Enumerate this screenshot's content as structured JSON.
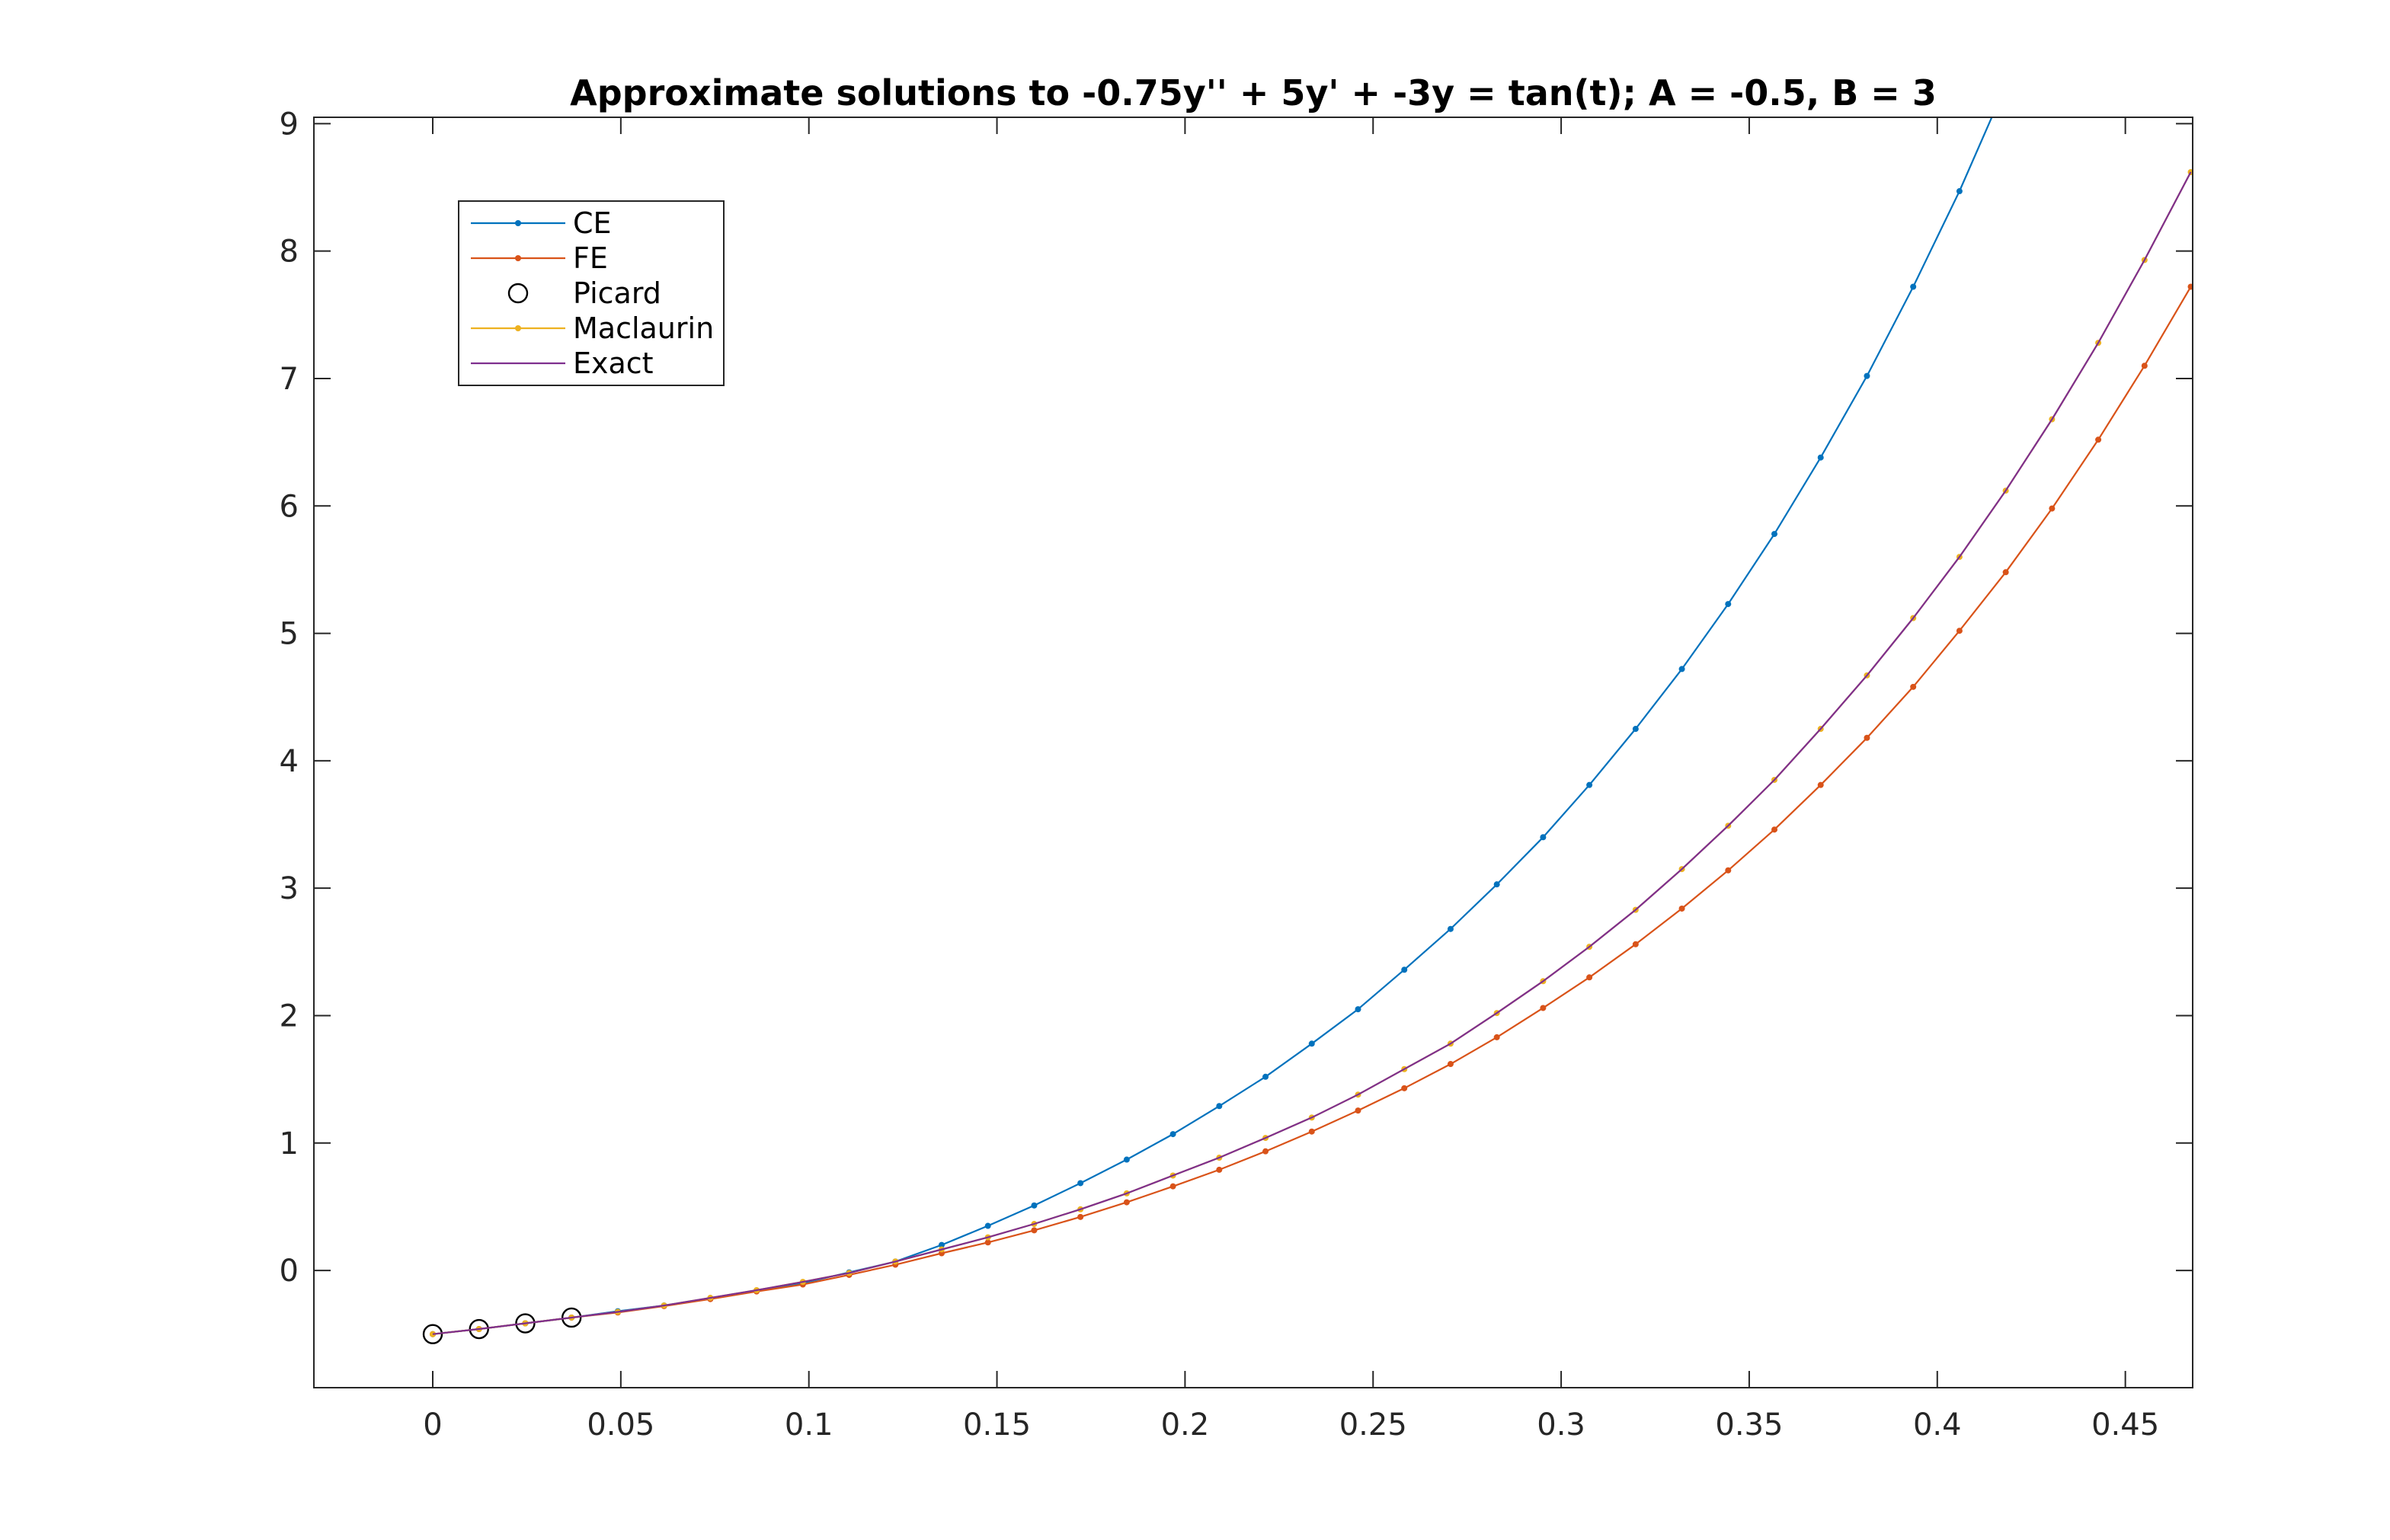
{
  "chart_data": {
    "type": "line",
    "title": "Approximate solutions to -0.75y'' + 5y' + -3y = tan(t); A = -0.5, B = 3",
    "xlabel": "",
    "ylabel": "",
    "xlim": [
      -0.0316,
      0.4679
    ],
    "ylim": [
      -0.92,
      9.05
    ],
    "x_ticks": [
      "0",
      "0.05",
      "0.1",
      "0.15",
      "0.2",
      "0.25",
      "0.3",
      "0.35",
      "0.4",
      "0.45"
    ],
    "x_tick_values": [
      0,
      0.05,
      0.1,
      0.15,
      0.2,
      0.25,
      0.3,
      0.35,
      0.4,
      0.45
    ],
    "y_ticks": [
      "0",
      "1",
      "2",
      "3",
      "4",
      "5",
      "6",
      "7",
      "8",
      "9"
    ],
    "y_tick_values": [
      0,
      1,
      2,
      3,
      4,
      5,
      6,
      7,
      8,
      9
    ],
    "grid": false,
    "legend_position": "top-left",
    "series": [
      {
        "name": "CE",
        "color": "#0072BD",
        "style": "line-dots",
        "x": [
          0,
          0.0123,
          0.0246,
          0.0369,
          0.0492,
          0.0615,
          0.0738,
          0.0861,
          0.0984,
          0.1107,
          0.123,
          0.1353,
          0.1476,
          0.1599,
          0.1722,
          0.1845,
          0.1968,
          0.2091,
          0.2214,
          0.2337,
          0.246,
          0.2583,
          0.2706,
          0.2829,
          0.2952,
          0.3075,
          0.3198,
          0.3321,
          0.3444,
          0.3567,
          0.369,
          0.3813,
          0.3936,
          0.4059,
          0.4182
        ],
        "y": [
          -0.5,
          -0.46,
          -0.415,
          -0.37,
          -0.32,
          -0.275,
          -0.22,
          -0.16,
          -0.1,
          -0.015,
          0.07,
          0.2,
          0.35,
          0.51,
          0.685,
          0.87,
          1.07,
          1.29,
          1.52,
          1.78,
          2.05,
          2.36,
          2.68,
          3.03,
          3.4,
          3.81,
          4.25,
          4.72,
          5.23,
          5.78,
          6.38,
          7.02,
          7.72,
          8.47,
          9.3
        ]
      },
      {
        "name": "FE",
        "color": "#D95319",
        "style": "line-dots",
        "x": [
          0,
          0.0123,
          0.0246,
          0.0369,
          0.0492,
          0.0615,
          0.0738,
          0.0861,
          0.0984,
          0.1107,
          0.123,
          0.1353,
          0.1476,
          0.1599,
          0.1722,
          0.1845,
          0.1968,
          0.2091,
          0.2214,
          0.2337,
          0.246,
          0.2583,
          0.2706,
          0.2829,
          0.2952,
          0.3075,
          0.3198,
          0.3321,
          0.3444,
          0.3567,
          0.369,
          0.3813,
          0.3936,
          0.4059,
          0.4182,
          0.4305,
          0.4428,
          0.4551,
          0.4674
        ],
        "y": [
          -0.5,
          -0.46,
          -0.415,
          -0.37,
          -0.33,
          -0.28,
          -0.225,
          -0.165,
          -0.11,
          -0.035,
          0.045,
          0.135,
          0.22,
          0.315,
          0.42,
          0.535,
          0.66,
          0.79,
          0.935,
          1.09,
          1.255,
          1.43,
          1.62,
          1.83,
          2.06,
          2.3,
          2.56,
          2.84,
          3.14,
          3.46,
          3.81,
          4.18,
          4.58,
          5.02,
          5.48,
          5.98,
          6.52,
          7.1,
          7.72
        ]
      },
      {
        "name": "Picard",
        "color": "#000000",
        "style": "circles",
        "x": [
          0,
          0.0123,
          0.0246,
          0.0369
        ],
        "y": [
          -0.5,
          -0.46,
          -0.415,
          -0.37
        ]
      },
      {
        "name": "Maclaurin",
        "color": "#EDB120",
        "style": "line-dots",
        "x": [
          0,
          0.0123,
          0.0246,
          0.0369,
          0.0492,
          0.0615,
          0.0738,
          0.0861,
          0.0984,
          0.1107,
          0.123,
          0.1353,
          0.1476,
          0.1599,
          0.1722,
          0.1845,
          0.1968,
          0.2091,
          0.2214,
          0.2337,
          0.246,
          0.2583,
          0.2706,
          0.2829,
          0.2952,
          0.3075,
          0.3198,
          0.3321,
          0.3444,
          0.3567,
          0.369,
          0.3813,
          0.3936,
          0.4059,
          0.4182,
          0.4305,
          0.4428,
          0.4551,
          0.4674
        ],
        "y": [
          -0.5,
          -0.46,
          -0.415,
          -0.37,
          -0.325,
          -0.275,
          -0.215,
          -0.155,
          -0.09,
          -0.02,
          0.07,
          0.165,
          0.26,
          0.365,
          0.48,
          0.605,
          0.745,
          0.885,
          1.04,
          1.2,
          1.38,
          1.58,
          1.78,
          2.02,
          2.27,
          2.54,
          2.83,
          3.15,
          3.49,
          3.85,
          4.25,
          4.67,
          5.12,
          5.6,
          6.12,
          6.68,
          7.28,
          7.93,
          8.62
        ]
      },
      {
        "name": "Exact",
        "color": "#7E2F8E",
        "style": "line",
        "x": [
          0,
          0.0123,
          0.0246,
          0.0369,
          0.0492,
          0.0615,
          0.0738,
          0.0861,
          0.0984,
          0.1107,
          0.123,
          0.1353,
          0.1476,
          0.1599,
          0.1722,
          0.1845,
          0.1968,
          0.2091,
          0.2214,
          0.2337,
          0.246,
          0.2583,
          0.2706,
          0.2829,
          0.2952,
          0.3075,
          0.3198,
          0.3321,
          0.3444,
          0.3567,
          0.369,
          0.3813,
          0.3936,
          0.4059,
          0.4182,
          0.4305,
          0.4428,
          0.4551,
          0.4674
        ],
        "y": [
          -0.5,
          -0.46,
          -0.415,
          -0.37,
          -0.325,
          -0.275,
          -0.215,
          -0.155,
          -0.09,
          -0.02,
          0.07,
          0.165,
          0.26,
          0.365,
          0.48,
          0.605,
          0.745,
          0.885,
          1.04,
          1.2,
          1.38,
          1.58,
          1.78,
          2.02,
          2.27,
          2.54,
          2.83,
          3.15,
          3.49,
          3.85,
          4.25,
          4.67,
          5.12,
          5.6,
          6.12,
          6.68,
          7.28,
          7.93,
          8.62
        ]
      }
    ]
  }
}
